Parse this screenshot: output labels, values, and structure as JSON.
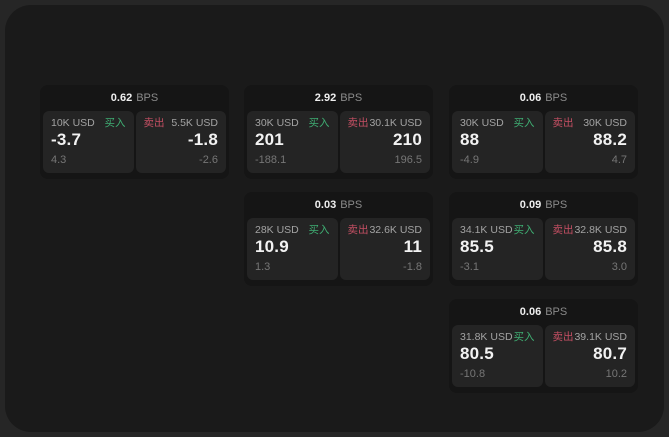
{
  "labels": {
    "bps_unit": "BPS",
    "buy": "买入",
    "sell": "卖出"
  },
  "colors": {
    "buy_green": "#3fae73",
    "sell_red": "#c44f63",
    "surface": "#1a1a1a",
    "card_background": "#151515",
    "panel_background": "#242424"
  },
  "cards": [
    {
      "bps": "0.62",
      "buy": {
        "amount": "10K USD",
        "price": "-3.7",
        "delta": "4.3"
      },
      "sell": {
        "amount": "5.5K USD",
        "price": "-1.8",
        "delta": "-2.6"
      }
    },
    {
      "bps": "2.92",
      "buy": {
        "amount": "30K USD",
        "price": "201",
        "delta": "-188.1"
      },
      "sell": {
        "amount": "30.1K USD",
        "price": "210",
        "delta": "196.5"
      }
    },
    {
      "bps": "0.06",
      "buy": {
        "amount": "30K USD",
        "price": "88",
        "delta": "-4.9"
      },
      "sell": {
        "amount": "30K USD",
        "price": "88.2",
        "delta": "4.7"
      }
    },
    {
      "bps": "0.03",
      "buy": {
        "amount": "28K USD",
        "price": "10.9",
        "delta": "1.3"
      },
      "sell": {
        "amount": "32.6K USD",
        "price": "11",
        "delta": "-1.8"
      }
    },
    {
      "bps": "0.09",
      "buy": {
        "amount": "34.1K USD",
        "price": "85.5",
        "delta": "-3.1"
      },
      "sell": {
        "amount": "32.8K USD",
        "price": "85.8",
        "delta": "3.0"
      }
    },
    {
      "bps": "0.06",
      "buy": {
        "amount": "31.8K USD",
        "price": "80.5",
        "delta": "-10.8"
      },
      "sell": {
        "amount": "39.1K USD",
        "price": "80.7",
        "delta": "10.2"
      }
    }
  ]
}
